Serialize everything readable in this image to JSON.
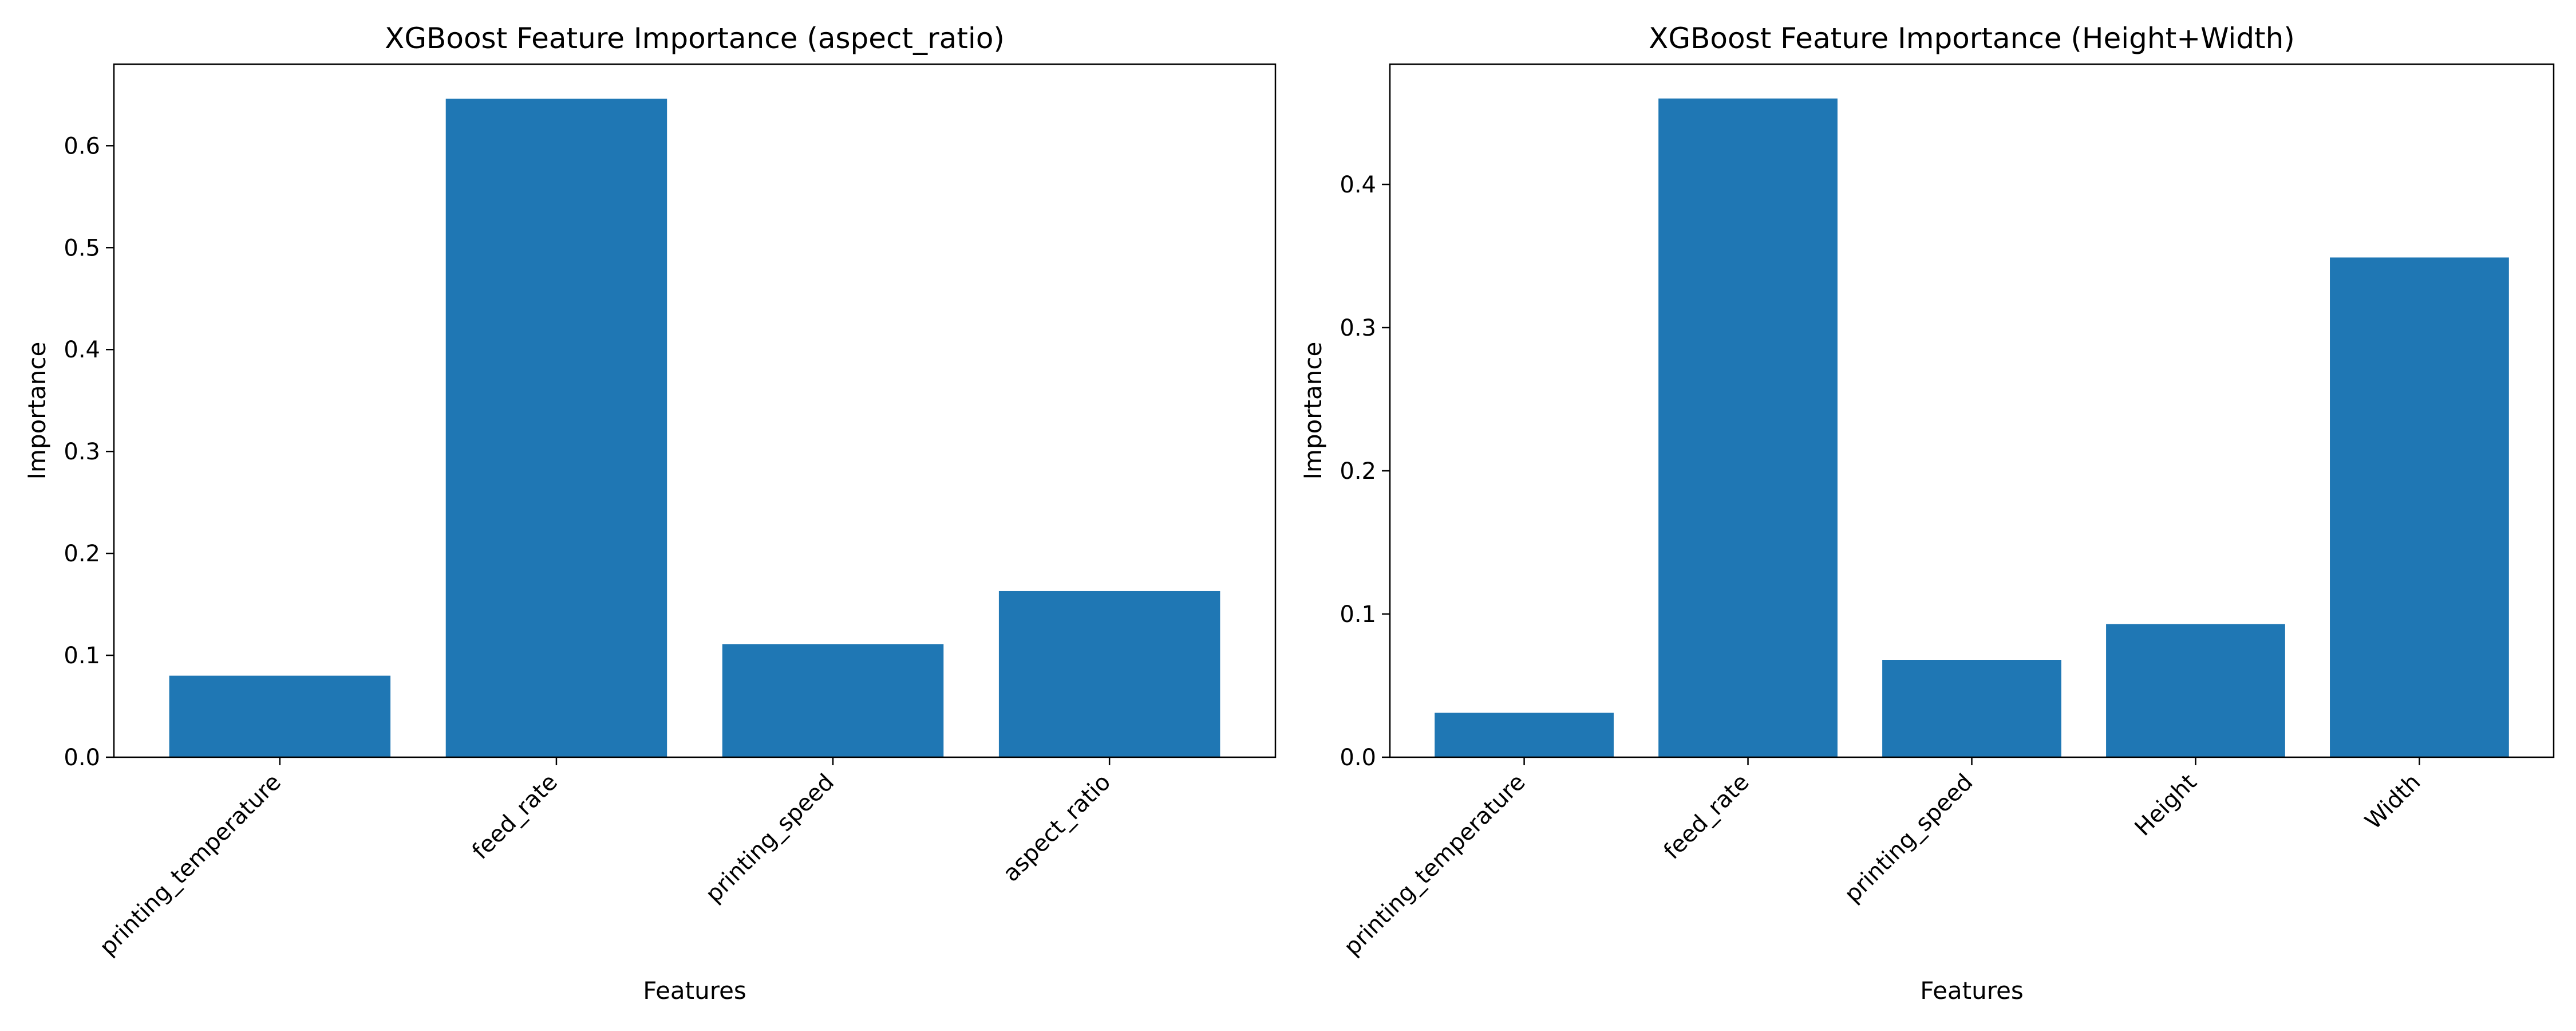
{
  "chart_data": [
    {
      "type": "bar",
      "title": "XGBoost Feature Importance (aspect_ratio)",
      "xlabel": "Features",
      "ylabel": "Importance",
      "categories": [
        "printing_temperature",
        "feed_rate",
        "printing_speed",
        "aspect_ratio"
      ],
      "values": [
        0.08,
        0.646,
        0.111,
        0.163
      ],
      "ylim": [
        0,
        0.68
      ],
      "yticks": [
        0.0,
        0.1,
        0.2,
        0.3,
        0.4,
        0.5,
        0.6
      ],
      "bar_color": "#1f77b4",
      "grid": false
    },
    {
      "type": "bar",
      "title": "XGBoost Feature Importance (Height+Width)",
      "xlabel": "Features",
      "ylabel": "Importance",
      "categories": [
        "printing_temperature",
        "feed_rate",
        "printing_speed",
        "Height",
        "Width"
      ],
      "values": [
        0.031,
        0.46,
        0.068,
        0.093,
        0.349
      ],
      "ylim": [
        0,
        0.484
      ],
      "yticks": [
        0.0,
        0.1,
        0.2,
        0.3,
        0.4
      ],
      "bar_color": "#1f77b4",
      "grid": false
    }
  ]
}
